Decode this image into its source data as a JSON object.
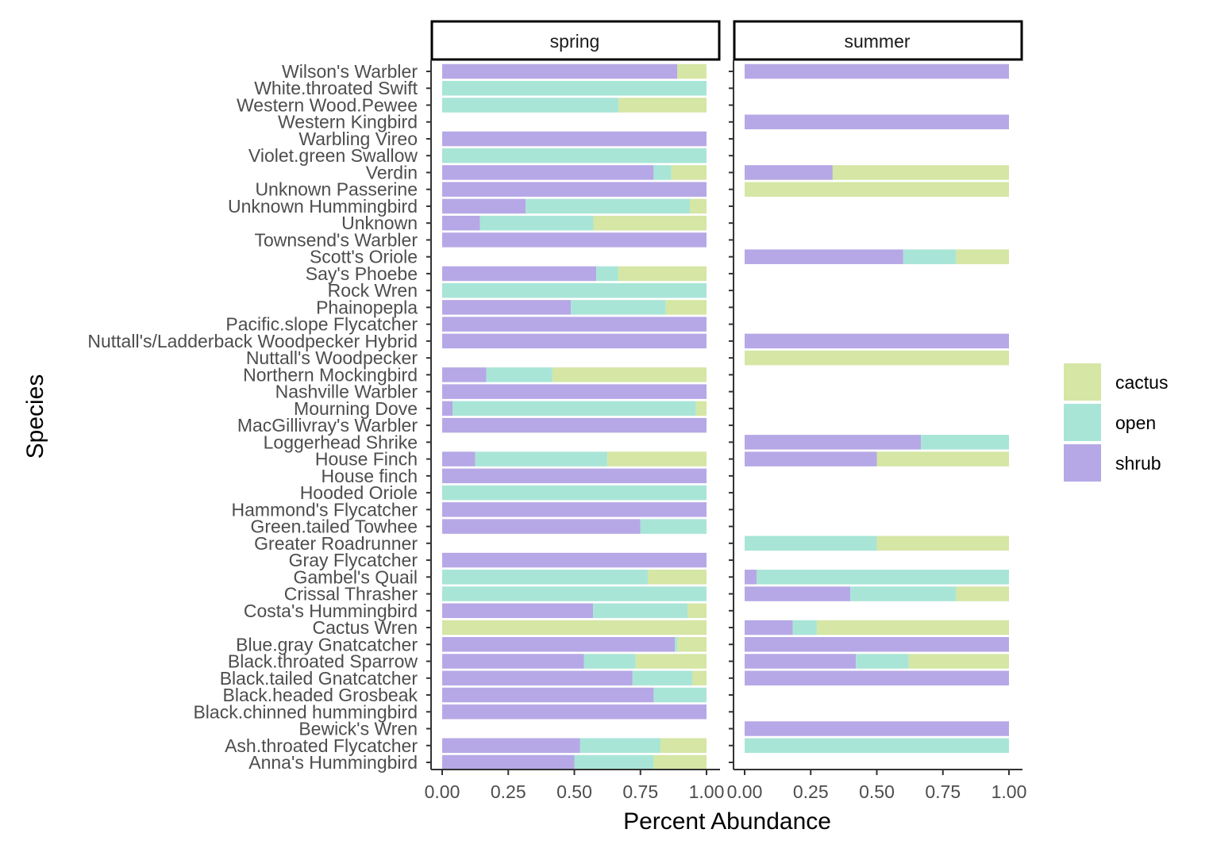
{
  "chart_data": {
    "type": "bar",
    "orientation": "horizontal",
    "stacked": true,
    "xlabel": "Percent Abundance",
    "ylabel": "Species",
    "xlim": [
      0,
      1
    ],
    "x_ticks": [
      "0.00",
      "0.25",
      "0.50",
      "0.75",
      "1.00"
    ],
    "grid": false,
    "legend_position": "right",
    "colors": {
      "cactus": "#d5e6a5",
      "open": "#a8e5d7",
      "shrub": "#b6a8e6"
    },
    "legend": [
      {
        "key": "cactus",
        "label": "cactus"
      },
      {
        "key": "open",
        "label": "open"
      },
      {
        "key": "shrub",
        "label": "shrub"
      }
    ],
    "stack_order": [
      "shrub",
      "open",
      "cactus"
    ],
    "categories": [
      "Wilson's Warbler",
      "White.throated Swift",
      "Western Wood.Pewee",
      "Western Kingbird",
      "Warbling Vireo",
      "Violet.green Swallow",
      "Verdin",
      "Unknown Passerine",
      "Unknown Hummingbird",
      "Unknown",
      "Townsend's Warbler",
      "Scott's Oriole",
      "Say's Phoebe",
      "Rock Wren",
      "Phainopepla",
      "Pacific.slope Flycatcher",
      "Nuttall's/Ladderback Woodpecker Hybrid",
      "Nuttall's Woodpecker",
      "Northern Mockingbird",
      "Nashville Warbler",
      "Mourning Dove",
      "MacGillivray's Warbler",
      "Loggerhead Shrike",
      "House Finch",
      "House finch",
      "Hooded Oriole",
      "Hammond's Flycatcher",
      "Green.tailed Towhee",
      "Greater Roadrunner",
      "Gray Flycatcher",
      "Gambel's Quail",
      "Crissal Thrasher",
      "Costa's Hummingbird",
      "Cactus Wren",
      "Blue.gray Gnatcatcher",
      "Black.throated Sparrow",
      "Black.tailed Gnatcatcher",
      "Black.headed Grosbeak",
      "Black.chinned hummingbird",
      "Bewick's Wren",
      "Ash.throated Flycatcher",
      "Anna's Hummingbird"
    ],
    "panels": [
      {
        "name": "spring",
        "shrub": [
          0.889,
          0,
          0,
          0,
          1,
          0,
          0.8,
          1,
          0.316,
          0.143,
          1,
          0,
          0.583,
          0,
          0.487,
          1,
          1,
          0,
          0.167,
          1,
          0.04,
          1,
          0,
          0.125,
          1,
          0,
          1,
          0.75,
          0,
          1,
          0,
          0,
          0.571,
          0,
          0.88,
          0.536,
          0.72,
          0.8,
          1,
          0,
          0.522,
          0.5
        ],
        "open": [
          0,
          1,
          0.667,
          0,
          0,
          1,
          0.067,
          0,
          0.621,
          0.429,
          0,
          0,
          0.083,
          1,
          0.359,
          0,
          0,
          0,
          0.25,
          0,
          0.92,
          0,
          0,
          0.5,
          0,
          1,
          0,
          0.25,
          0,
          0,
          0.778,
          1,
          0.357,
          0,
          0.01,
          0.196,
          0.226,
          0.2,
          0,
          0,
          0.304,
          0.3
        ],
        "cactus": [
          0.111,
          0,
          0.333,
          0,
          0,
          0,
          0.133,
          0,
          0.063,
          0.428,
          0,
          0,
          0.334,
          0,
          0.154,
          0,
          0,
          0,
          0.583,
          0,
          0.04,
          0,
          0,
          0.375,
          0,
          0,
          0,
          0,
          0,
          0,
          0.222,
          0,
          0.072,
          1,
          0.11,
          0.268,
          0.054,
          0,
          0,
          0,
          0.174,
          0.2
        ]
      },
      {
        "name": "summer",
        "shrub": [
          1,
          0,
          0,
          1,
          0,
          0,
          0.333,
          0,
          0,
          0,
          0,
          0.6,
          0,
          0,
          0,
          0,
          1,
          0,
          0,
          0,
          0,
          0,
          0.667,
          0.5,
          0,
          0,
          0,
          0,
          0,
          0,
          0.045,
          0.4,
          0,
          0.182,
          1,
          0.421,
          1,
          0,
          0,
          1,
          0,
          0
        ],
        "open": [
          0,
          0,
          0,
          0,
          0,
          0,
          0,
          0,
          0,
          0,
          0,
          0.2,
          0,
          0,
          0,
          0,
          0,
          0,
          0,
          0,
          0,
          0,
          0.333,
          0,
          0,
          0,
          0,
          0,
          0.5,
          0,
          0.955,
          0.4,
          0,
          0.091,
          0,
          0.2,
          0,
          0,
          0,
          0,
          1,
          0
        ],
        "cactus": [
          0,
          0,
          0,
          0,
          0,
          0,
          0.667,
          1,
          0,
          0,
          0,
          0.2,
          0,
          0,
          0,
          0,
          0,
          1,
          0,
          0,
          0,
          0,
          0,
          0.5,
          0,
          0,
          0,
          0,
          0.5,
          0,
          0,
          0.2,
          0,
          0.727,
          0,
          0.379,
          0,
          0,
          0,
          0,
          0,
          0
        ]
      }
    ]
  }
}
